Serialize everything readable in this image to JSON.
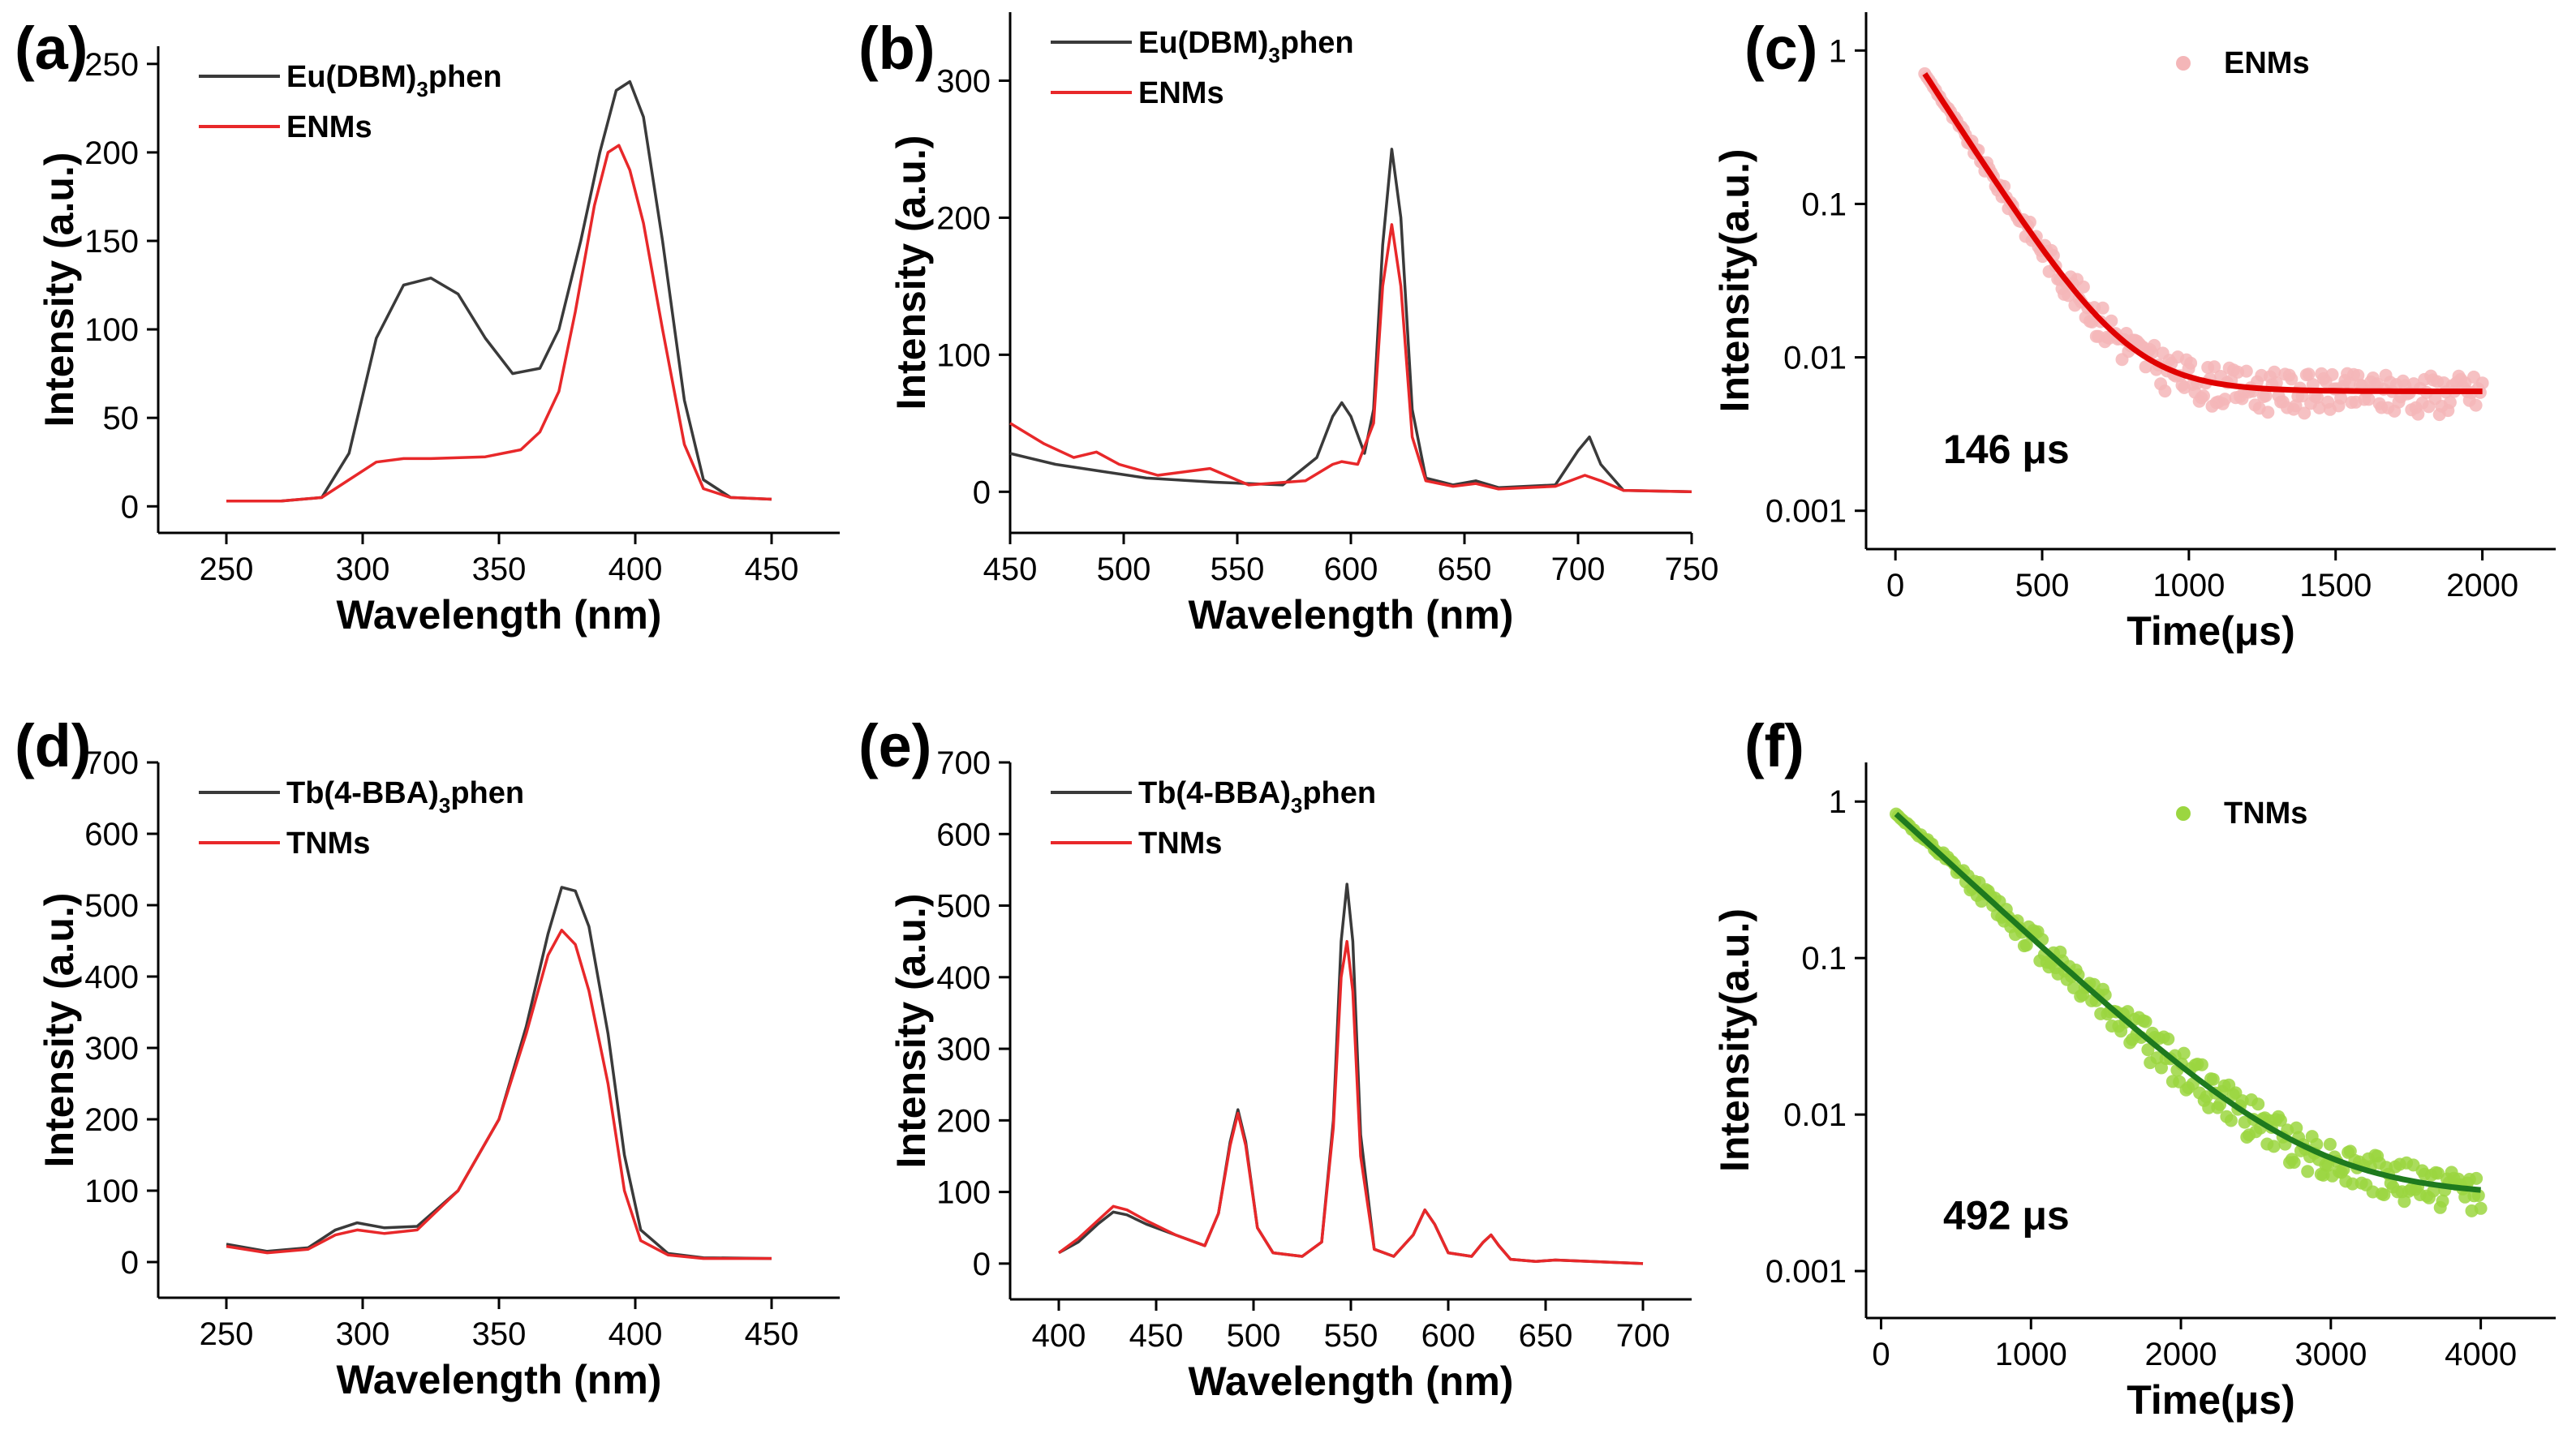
{
  "colors": {
    "black_series": "#3a3a3a",
    "red_series": "#e8282a",
    "pink_points": "#f4b6b8",
    "red_fit": "#e00000",
    "green_points": "#9bd640",
    "green_fit": "#1e7a1e"
  },
  "chart_data": [
    {
      "panel": "(a)",
      "type": "line",
      "xlabel": "Wavelength (nm)",
      "ylabel": "Intensity (a.u.)",
      "xlim": [
        225,
        475
      ],
      "ylim": [
        -15,
        260
      ],
      "xticks": [
        250,
        300,
        350,
        400,
        450
      ],
      "yticks": [
        0,
        50,
        100,
        150,
        200,
        250
      ],
      "legend_position": "top-left",
      "log_y": false,
      "series": [
        {
          "name": "Eu(DBM)",
          "sub": "3",
          "suffix": "phen",
          "color": "#3a3a3a",
          "x": [
            250,
            270,
            285,
            295,
            305,
            315,
            325,
            335,
            345,
            355,
            365,
            372,
            380,
            387,
            393,
            398,
            403,
            410,
            418,
            425,
            435,
            450
          ],
          "y": [
            3,
            3,
            5,
            30,
            95,
            125,
            129,
            120,
            95,
            75,
            78,
            100,
            150,
            200,
            235,
            240,
            220,
            150,
            60,
            15,
            5,
            4
          ]
        },
        {
          "name": "ENMs",
          "sub": "",
          "suffix": "",
          "color": "#e8282a",
          "x": [
            250,
            270,
            285,
            295,
            305,
            315,
            325,
            345,
            358,
            365,
            372,
            378,
            385,
            390,
            394,
            398,
            403,
            410,
            418,
            425,
            435,
            450
          ],
          "y": [
            3,
            3,
            5,
            15,
            25,
            27,
            27,
            28,
            32,
            42,
            65,
            110,
            170,
            200,
            204,
            190,
            160,
            100,
            35,
            10,
            5,
            4
          ]
        }
      ]
    },
    {
      "panel": "(b)",
      "type": "line",
      "xlabel": "Wavelength (nm)",
      "ylabel": "Intensity (a.u.)",
      "xlim": [
        450,
        750
      ],
      "ylim": [
        -30,
        350
      ],
      "xticks": [
        450,
        500,
        550,
        600,
        650,
        700,
        750
      ],
      "yticks": [
        0,
        100,
        200,
        300
      ],
      "legend_position": "top-left",
      "log_y": false,
      "series": [
        {
          "name": "Eu(DBM)",
          "sub": "3",
          "suffix": "phen",
          "color": "#3a3a3a",
          "x": [
            450,
            470,
            490,
            510,
            540,
            570,
            585,
            592,
            596,
            600,
            606,
            610,
            614,
            618,
            622,
            627,
            633,
            645,
            655,
            665,
            690,
            700,
            705,
            710,
            720,
            750
          ],
          "y": [
            28,
            20,
            15,
            10,
            7,
            5,
            25,
            55,
            65,
            55,
            28,
            60,
            180,
            250,
            200,
            60,
            10,
            5,
            8,
            3,
            5,
            30,
            40,
            20,
            1,
            0
          ]
        },
        {
          "name": "ENMs",
          "sub": "",
          "suffix": "",
          "color": "#e8282a",
          "x": [
            450,
            465,
            478,
            488,
            498,
            515,
            538,
            555,
            580,
            592,
            596,
            603,
            610,
            614,
            618,
            622,
            627,
            633,
            645,
            655,
            665,
            690,
            703,
            710,
            720,
            750
          ],
          "y": [
            50,
            35,
            25,
            29,
            20,
            12,
            17,
            5,
            8,
            20,
            22,
            20,
            50,
            150,
            195,
            150,
            40,
            8,
            4,
            6,
            2,
            4,
            12,
            8,
            1,
            0
          ]
        }
      ]
    },
    {
      "panel": "(c)",
      "type": "scatter",
      "xlabel": "Time(μs)",
      "ylabel": "Intensity(a.u.)",
      "xlim": [
        -100,
        2250
      ],
      "ylim_log10": [
        -3.25,
        0.25
      ],
      "log_y": true,
      "xticks": [
        0,
        500,
        1000,
        1500,
        2000
      ],
      "yticks": [
        0.001,
        0.01,
        0.1,
        1
      ],
      "ytick_labels": [
        "0.001",
        "0.01",
        "0.1",
        "1"
      ],
      "legend_position": "top-right",
      "series": [
        {
          "name": "ENMs",
          "kind": "points",
          "color": "#f4b6b8",
          "t_start": 100,
          "t_end": 2000
        },
        {
          "name": "fit",
          "kind": "fit",
          "color": "#e00000",
          "model": "A*exp(-(t-100)/tau)+C",
          "A": 0.7,
          "tau": 146,
          "C": 0.006
        }
      ],
      "annotation": "146 μs"
    },
    {
      "panel": "(d)",
      "type": "line",
      "xlabel": "Wavelength (nm)",
      "ylabel": "Intensity (a.u.)",
      "xlim": [
        225,
        475
      ],
      "ylim": [
        -50,
        700
      ],
      "xticks": [
        250,
        300,
        350,
        400,
        450
      ],
      "yticks": [
        0,
        100,
        200,
        300,
        400,
        500,
        600,
        700
      ],
      "legend_position": "top-left",
      "log_y": false,
      "series": [
        {
          "name": "Tb(4-BBA)",
          "sub": "3",
          "suffix": "phen",
          "color": "#3a3a3a",
          "x": [
            250,
            265,
            280,
            290,
            298,
            308,
            320,
            335,
            350,
            360,
            368,
            373,
            378,
            383,
            390,
            396,
            402,
            412,
            425,
            450
          ],
          "y": [
            25,
            15,
            20,
            45,
            55,
            48,
            50,
            100,
            200,
            330,
            460,
            525,
            520,
            470,
            320,
            150,
            45,
            12,
            6,
            5
          ]
        },
        {
          "name": "TNMs",
          "sub": "",
          "suffix": "",
          "color": "#e8282a",
          "x": [
            250,
            265,
            280,
            290,
            298,
            308,
            320,
            335,
            350,
            360,
            368,
            373,
            378,
            383,
            390,
            396,
            402,
            412,
            425,
            450
          ],
          "y": [
            22,
            13,
            18,
            38,
            45,
            40,
            45,
            100,
            200,
            320,
            430,
            465,
            445,
            380,
            250,
            100,
            30,
            10,
            5,
            5
          ]
        }
      ]
    },
    {
      "panel": "(e)",
      "type": "line",
      "xlabel": "Wavelength (nm)",
      "ylabel": "Intensity (a.u.)",
      "xlim": [
        375,
        725
      ],
      "ylim": [
        -50,
        700
      ],
      "xticks": [
        400,
        450,
        500,
        550,
        600,
        650,
        700
      ],
      "yticks": [
        0,
        100,
        200,
        300,
        400,
        500,
        600,
        700
      ],
      "legend_position": "top-left",
      "log_y": false,
      "series": [
        {
          "name": "Tb(4-BBA)",
          "sub": "3",
          "suffix": "phen",
          "color": "#3a3a3a",
          "x": [
            400,
            410,
            420,
            428,
            435,
            445,
            460,
            475,
            482,
            488,
            492,
            496,
            502,
            510,
            525,
            535,
            541,
            545,
            548,
            551,
            555,
            562,
            572,
            582,
            588,
            593,
            600,
            612,
            618,
            622,
            626,
            632,
            645,
            655,
            700
          ],
          "y": [
            15,
            30,
            55,
            72,
            68,
            55,
            40,
            25,
            70,
            170,
            215,
            170,
            50,
            15,
            10,
            30,
            200,
            450,
            530,
            450,
            180,
            20,
            10,
            40,
            75,
            55,
            15,
            10,
            30,
            40,
            25,
            6,
            3,
            5,
            0
          ]
        },
        {
          "name": "TNMs",
          "sub": "",
          "suffix": "",
          "color": "#e8282a",
          "x": [
            400,
            410,
            420,
            428,
            435,
            445,
            460,
            475,
            482,
            488,
            492,
            496,
            502,
            510,
            525,
            535,
            541,
            545,
            548,
            551,
            555,
            562,
            572,
            582,
            588,
            593,
            600,
            612,
            618,
            622,
            626,
            632,
            645,
            655,
            700
          ],
          "y": [
            15,
            35,
            60,
            80,
            75,
            60,
            40,
            25,
            70,
            165,
            210,
            165,
            50,
            15,
            10,
            30,
            190,
            400,
            450,
            380,
            150,
            20,
            10,
            40,
            75,
            55,
            15,
            10,
            30,
            40,
            25,
            6,
            3,
            5,
            0
          ]
        }
      ]
    },
    {
      "panel": "(f)",
      "type": "scatter",
      "xlabel": "Time(μs)",
      "ylabel": "Intensity(a.u.)",
      "xlim": [
        -100,
        4500
      ],
      "ylim_log10": [
        -3.3,
        0.25
      ],
      "log_y": true,
      "xticks": [
        0,
        1000,
        2000,
        3000,
        4000
      ],
      "yticks": [
        0.001,
        0.01,
        0.1,
        1
      ],
      "ytick_labels": [
        "0.001",
        "0.01",
        "0.1",
        "1"
      ],
      "legend_position": "top-right",
      "series": [
        {
          "name": "TNMs",
          "kind": "points",
          "color": "#9bd640",
          "t_start": 100,
          "t_end": 4000
        },
        {
          "name": "fit",
          "kind": "fit",
          "color": "#1e7a1e",
          "model": "A*exp(-(t-100)/tau)+C",
          "A": 0.83,
          "tau": 492,
          "C": 0.003
        }
      ],
      "annotation": "492 μs"
    }
  ]
}
